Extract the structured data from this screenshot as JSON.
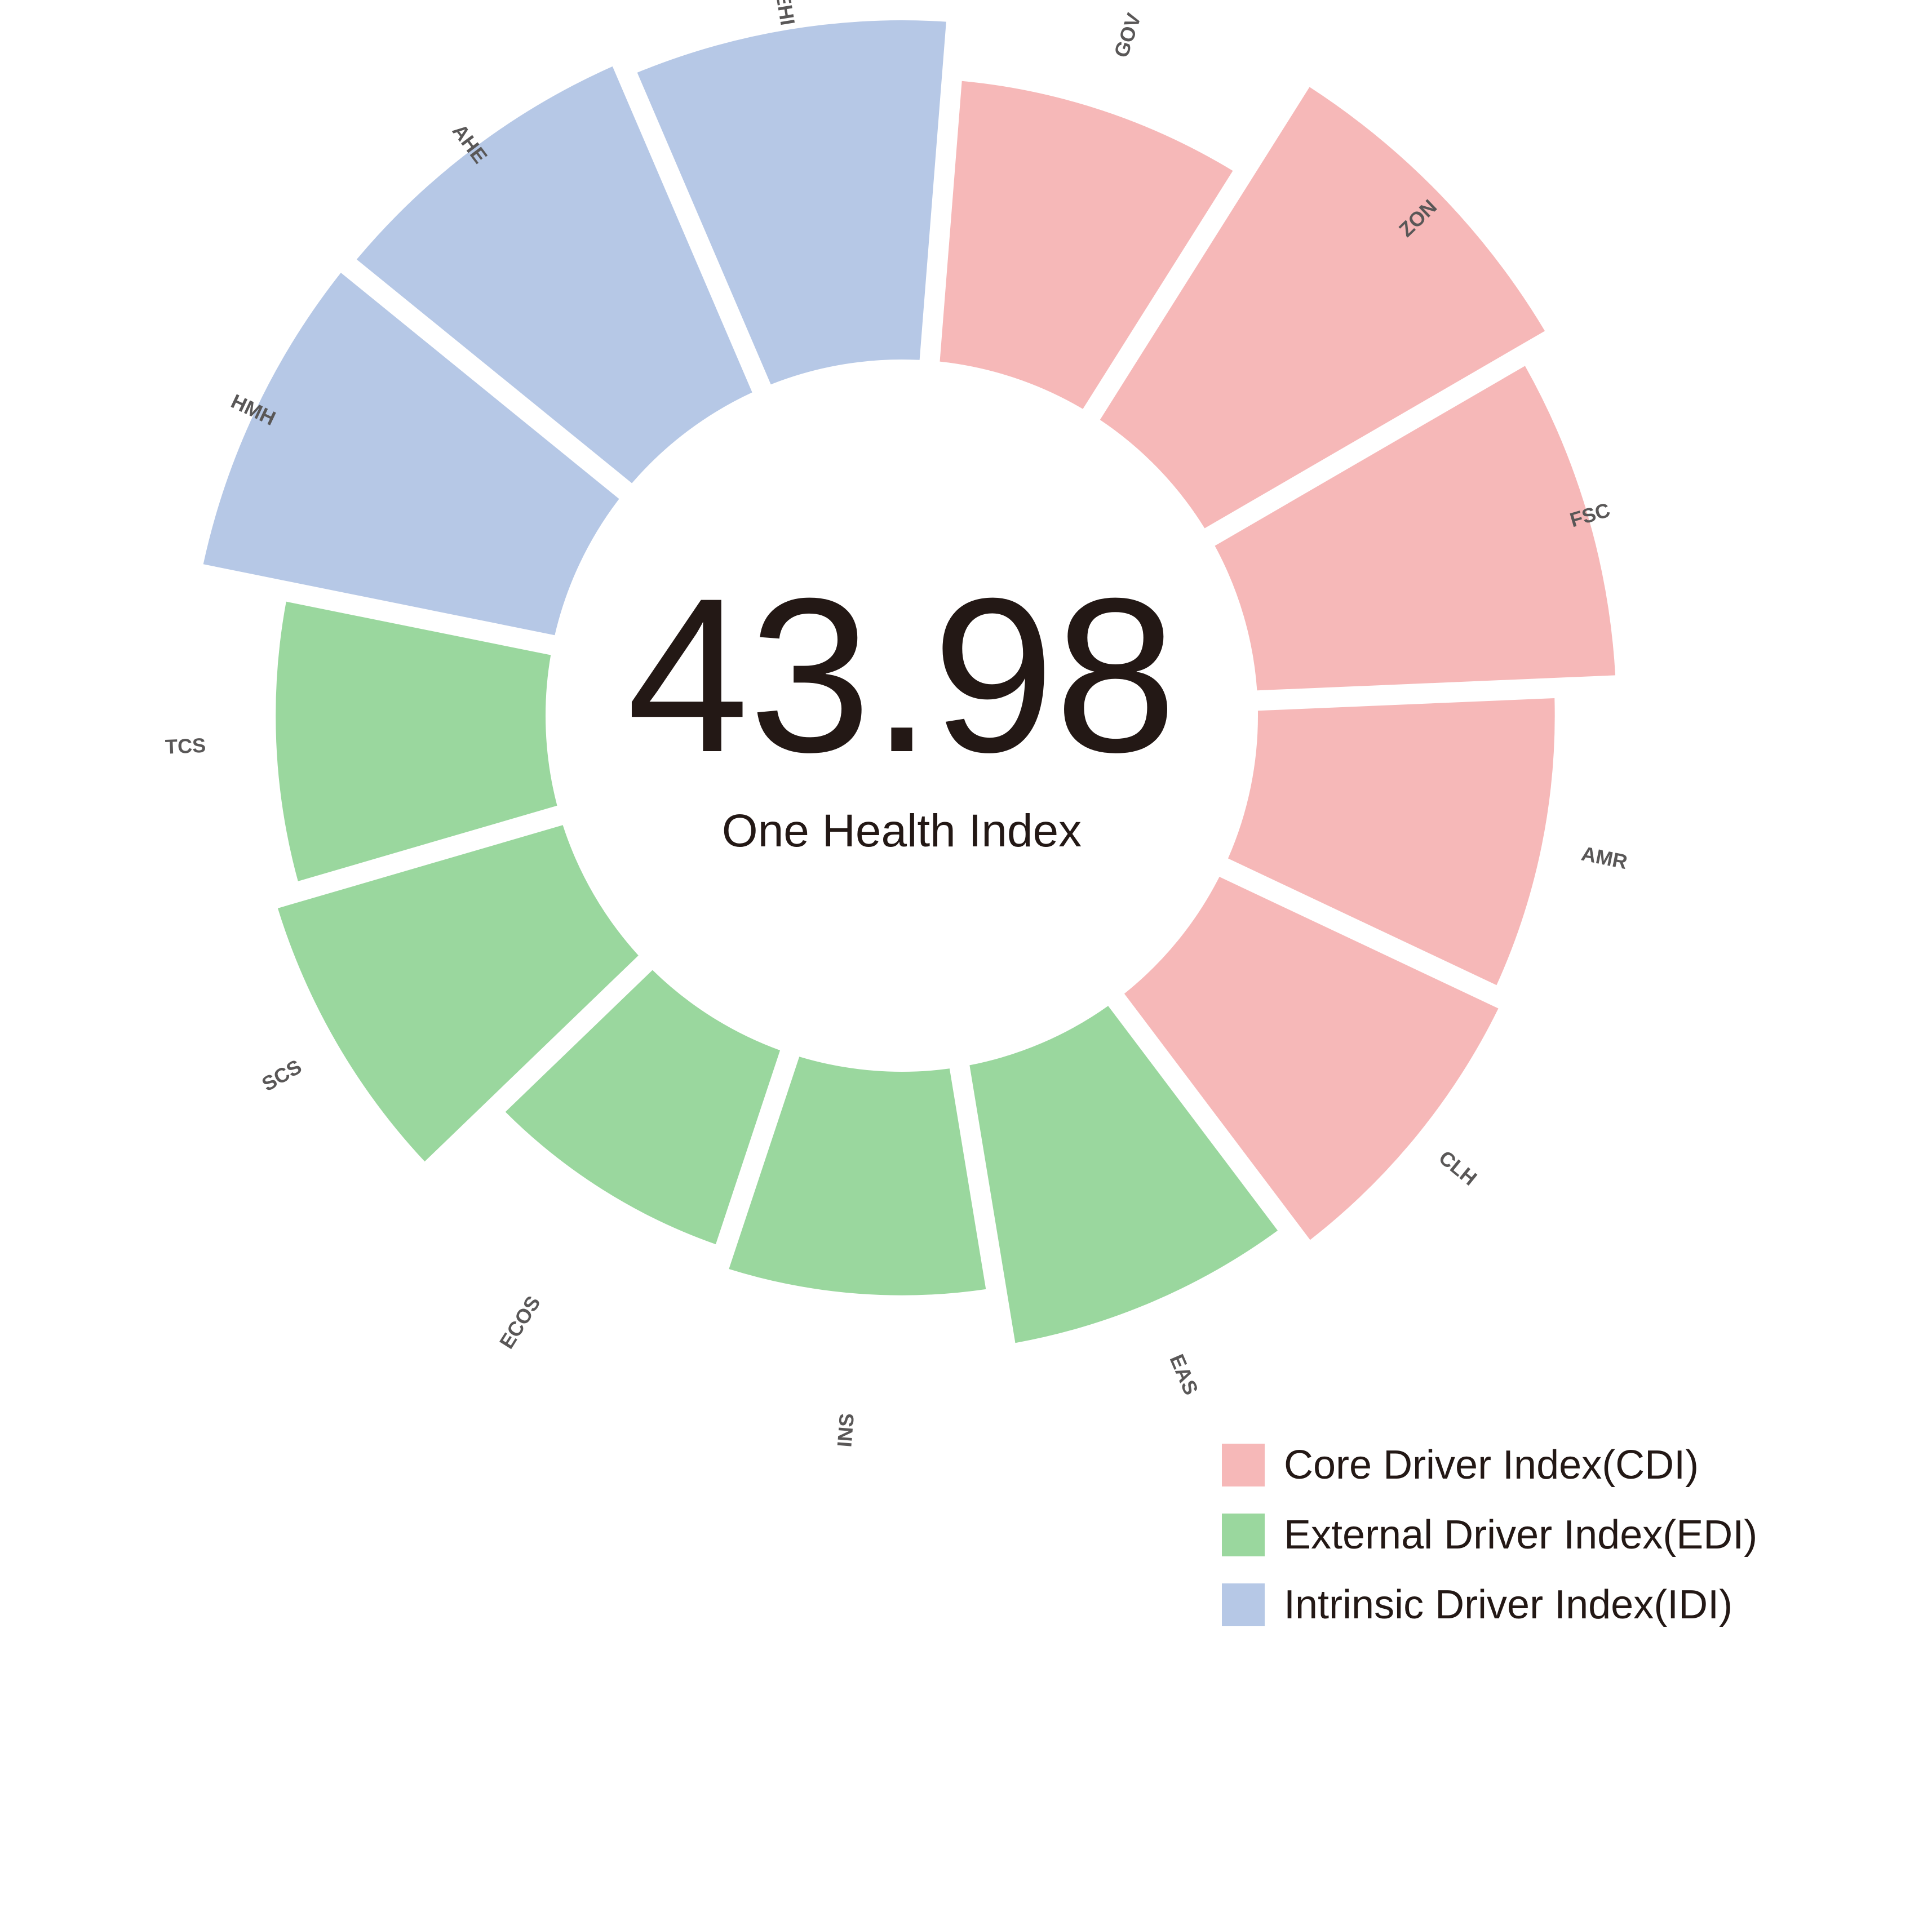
{
  "chart_data": {
    "type": "radial-bar",
    "center_value": "43.98",
    "center_label": "One Health Index",
    "segments": [
      {
        "label": "GOV",
        "group": "CDI",
        "value": 0.73
      },
      {
        "label": "ZON",
        "group": "CDI",
        "value": 1.02
      },
      {
        "label": "FSC",
        "group": "CDI",
        "value": 0.93
      },
      {
        "label": "AMR",
        "group": "CDI",
        "value": 0.77
      },
      {
        "label": "CLH",
        "group": "CDI",
        "value": 0.8
      },
      {
        "label": "EAS",
        "group": "EDI",
        "value": 0.73
      },
      {
        "label": "INS",
        "group": "EDI",
        "value": 0.58
      },
      {
        "label": "ECOS",
        "group": "EDI",
        "value": 0.53
      },
      {
        "label": "SCS",
        "group": "EDI",
        "value": 0.77
      },
      {
        "label": "TCS",
        "group": "EDI",
        "value": 0.7
      },
      {
        "label": "HMH",
        "group": "IDI",
        "value": 0.93
      },
      {
        "label": "AHE",
        "group": "IDI",
        "value": 0.92
      },
      {
        "label": "EHI",
        "group": "IDI",
        "value": 0.88
      }
    ],
    "legend": [
      {
        "key": "CDI",
        "label": "Core Driver Index(CDI)",
        "color": "#f6b8b8"
      },
      {
        "key": "EDI",
        "label": "External Driver Index(EDI)",
        "color": "#9ad79e"
      },
      {
        "key": "IDI",
        "label": "Intrinsic Driver Index(IDI)",
        "color": "#b6c8e6"
      }
    ],
    "legend_position": "bottom-right"
  }
}
